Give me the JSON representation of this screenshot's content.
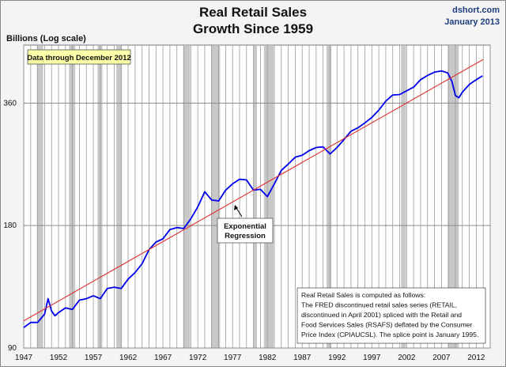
{
  "source": {
    "site": "dshort.com",
    "date": "January 2013"
  },
  "chart_data": {
    "type": "line",
    "title": "Real Retail Sales",
    "subtitle": "Growth Since 1959",
    "ylabel": "Billions (Log scale)",
    "xlabel": "",
    "yscale": "log",
    "ylim": [
      90,
      500
    ],
    "xlim": [
      1947,
      2014
    ],
    "yticks": [
      90,
      180,
      360
    ],
    "xticks": [
      1947,
      1952,
      1957,
      1962,
      1967,
      1972,
      1977,
      1982,
      1987,
      1992,
      1997,
      2002,
      2007,
      2012
    ],
    "grid": "vertical lines every year, horizontal lines at y ticks",
    "recessions": [
      [
        1948.9,
        1949.8
      ],
      [
        1953.5,
        1954.4
      ],
      [
        1957.6,
        1958.3
      ],
      [
        1960.3,
        1961.1
      ],
      [
        1969.9,
        1970.9
      ],
      [
        1973.9,
        1975.2
      ],
      [
        1980.0,
        1980.5
      ],
      [
        1981.5,
        1982.9
      ],
      [
        1990.5,
        1991.2
      ],
      [
        2001.2,
        2001.9
      ],
      [
        2007.9,
        2009.5
      ]
    ],
    "series": [
      {
        "name": "",
        "color": "#0000ee",
        "points": [
          [
            1947.0,
            101
          ],
          [
            1948.0,
            104
          ],
          [
            1949.0,
            104
          ],
          [
            1950.0,
            109
          ],
          [
            1950.5,
            119
          ],
          [
            1951.0,
            111
          ],
          [
            1951.5,
            108
          ],
          [
            1952.0,
            110
          ],
          [
            1953.0,
            113
          ],
          [
            1954.0,
            112
          ],
          [
            1955.0,
            118
          ],
          [
            1956.0,
            119
          ],
          [
            1957.0,
            121
          ],
          [
            1958.0,
            119
          ],
          [
            1959.0,
            126
          ],
          [
            1960.0,
            127
          ],
          [
            1961.0,
            126
          ],
          [
            1962.0,
            133
          ],
          [
            1963.0,
            138
          ],
          [
            1964.0,
            145
          ],
          [
            1965.0,
            157
          ],
          [
            1966.0,
            164
          ],
          [
            1967.0,
            167
          ],
          [
            1968.0,
            176
          ],
          [
            1969.0,
            178
          ],
          [
            1970.0,
            177
          ],
          [
            1971.0,
            187
          ],
          [
            1972.0,
            200
          ],
          [
            1973.0,
            218
          ],
          [
            1974.0,
            208
          ],
          [
            1975.0,
            207
          ],
          [
            1976.0,
            220
          ],
          [
            1977.0,
            228
          ],
          [
            1978.0,
            234
          ],
          [
            1979.0,
            233
          ],
          [
            1980.0,
            220
          ],
          [
            1981.0,
            221
          ],
          [
            1982.0,
            212
          ],
          [
            1983.0,
            228
          ],
          [
            1984.0,
            246
          ],
          [
            1985.0,
            255
          ],
          [
            1986.0,
            265
          ],
          [
            1987.0,
            268
          ],
          [
            1988.0,
            275
          ],
          [
            1989.0,
            280
          ],
          [
            1990.0,
            281
          ],
          [
            1991.0,
            270
          ],
          [
            1992.0,
            280
          ],
          [
            1993.0,
            293
          ],
          [
            1994.0,
            307
          ],
          [
            1995.0,
            313
          ],
          [
            1996.0,
            322
          ],
          [
            1997.0,
            332
          ],
          [
            1998.0,
            346
          ],
          [
            1999.0,
            364
          ],
          [
            2000.0,
            377
          ],
          [
            2001.0,
            378
          ],
          [
            2002.0,
            386
          ],
          [
            2003.0,
            394
          ],
          [
            2004.0,
            411
          ],
          [
            2005.0,
            421
          ],
          [
            2006.0,
            429
          ],
          [
            2007.0,
            432
          ],
          [
            2007.9,
            427
          ],
          [
            2008.5,
            407
          ],
          [
            2009.0,
            376
          ],
          [
            2009.5,
            371
          ],
          [
            2010.0,
            383
          ],
          [
            2011.0,
            400
          ],
          [
            2012.0,
            411
          ],
          [
            2012.9,
            420
          ]
        ]
      },
      {
        "name": "",
        "color": "#e03030",
        "points": [
          [
            1947.0,
            105
          ],
          [
            2013.0,
            461
          ]
        ]
      }
    ],
    "annotations": [
      {
        "text": "Data through December 2012"
      },
      {
        "text": [
          "Exponential",
          "Regression"
        ]
      },
      {
        "text": [
          "Real Retail Sales is computed as follows:",
          "The FRED discontinued retail sales series (RETAIL,",
          "discontinued in April 2001) spliced with the Retail and",
          "Food Services Sales (RSAFS) deflated by the Consumer",
          "Price Index (CPIAUCSL). The splice point is January 1995."
        ]
      }
    ]
  }
}
